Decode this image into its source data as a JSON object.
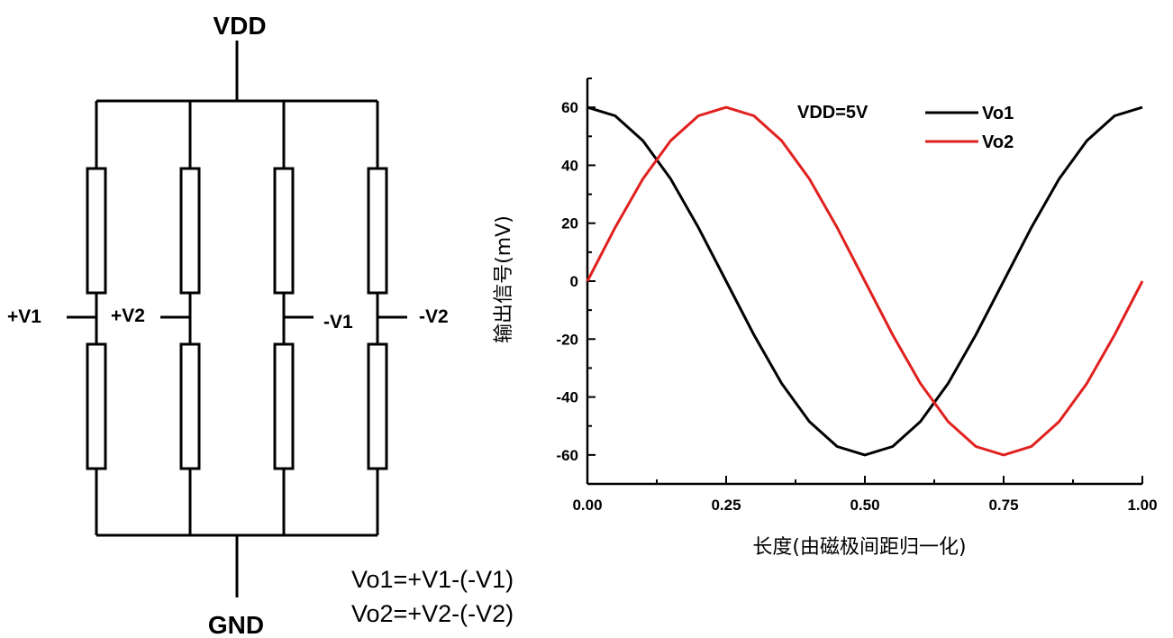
{
  "circuit": {
    "top_label": "VDD",
    "bottom_label": "GND",
    "taps": [
      "+V1",
      "+V2",
      "-V1",
      "-V2"
    ],
    "formula_1": "Vo1=+V1-(-V1)",
    "formula_2": "Vo2=+V2-(-V2)"
  },
  "chart_data": {
    "type": "line",
    "title": "",
    "annotation": "VDD=5V",
    "xlabel": "长度(由磁极间距归一化)",
    "ylabel": "输出信号(mV)",
    "xlim": [
      0,
      1
    ],
    "ylim": [
      -70,
      70
    ],
    "x_ticks": [
      "0.00",
      "0.25",
      "0.50",
      "0.75",
      "1.00"
    ],
    "y_ticks": [
      "-60",
      "-40",
      "-20",
      "0",
      "20",
      "40",
      "60"
    ],
    "legend_position": "top-right",
    "grid": false,
    "x": [
      0.0,
      0.05,
      0.1,
      0.15,
      0.2,
      0.25,
      0.3,
      0.35,
      0.4,
      0.45,
      0.5,
      0.55,
      0.6,
      0.65,
      0.7,
      0.75,
      0.8,
      0.85,
      0.9,
      0.95,
      1.0
    ],
    "series": [
      {
        "name": "Vo1",
        "color": "#000000",
        "values": [
          60,
          57.1,
          48.5,
          35.3,
          18.5,
          0,
          -18.5,
          -35.3,
          -48.5,
          -57.1,
          -60,
          -57.1,
          -48.5,
          -35.3,
          -18.5,
          0,
          18.5,
          35.3,
          48.5,
          57.1,
          60
        ]
      },
      {
        "name": "Vo2",
        "color": "#e0211f",
        "values": [
          0,
          18.5,
          35.3,
          48.5,
          57.1,
          60,
          57.1,
          48.5,
          35.3,
          18.5,
          0,
          -18.5,
          -35.3,
          -48.5,
          -57.1,
          -60,
          -57.1,
          -48.5,
          -35.3,
          -18.5,
          0
        ]
      }
    ]
  }
}
